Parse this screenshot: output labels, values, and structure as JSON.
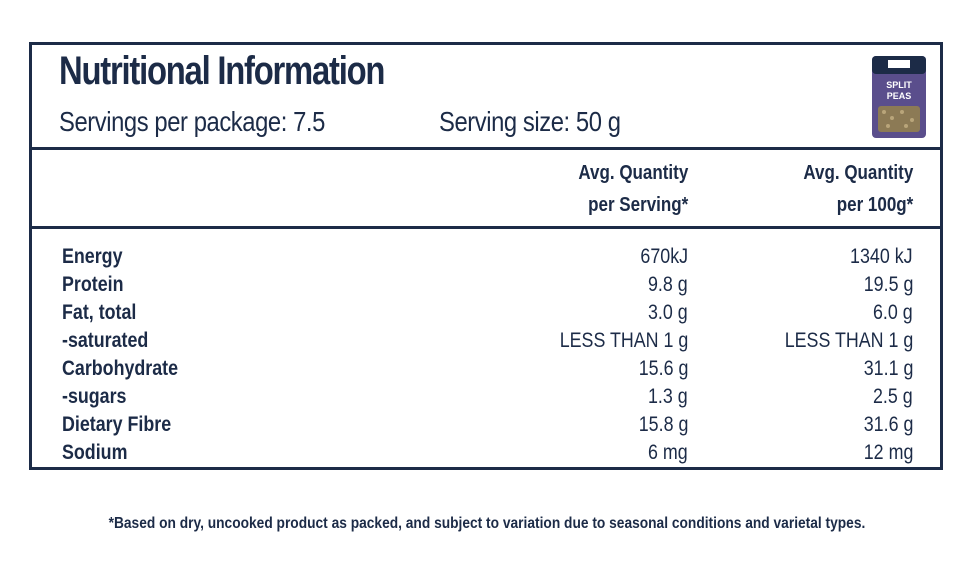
{
  "panel": {
    "title": "Nutritional Information",
    "servings_per_package": "Servings per package: 7.5",
    "serving_size": "Serving size: 50 g"
  },
  "columns": {
    "per_serving": [
      "Avg. Quantity",
      "per Serving*"
    ],
    "per_100g": [
      "Avg. Quantity",
      "per 100g*"
    ]
  },
  "rows": [
    {
      "label": "Energy",
      "per_serving": "670kJ",
      "per_100g": "1340 kJ"
    },
    {
      "label": "Protein",
      "per_serving": "9.8 g",
      "per_100g": "19.5 g"
    },
    {
      "label": "Fat, total",
      "per_serving": "3.0 g",
      "per_100g": "6.0 g"
    },
    {
      "label": "-saturated",
      "per_serving": "LESS THAN 1 g",
      "per_100g": "LESS THAN 1 g"
    },
    {
      "label": "Carbohydrate",
      "per_serving": "15.6 g",
      "per_100g": "31.1 g"
    },
    {
      "label": "-sugars",
      "per_serving": "1.3 g",
      "per_100g": "2.5 g"
    },
    {
      "label": "Dietary Fibre",
      "per_serving": "15.8 g",
      "per_100g": "31.6 g"
    },
    {
      "label": "Sodium",
      "per_serving": "6 mg",
      "per_100g": "12 mg"
    }
  ],
  "footnote": "*Based on dry, uncooked product as packed, and subject to variation due to seasonal conditions and varietal types.",
  "product_image": {
    "brand_text": "",
    "package_text": [
      "SPLIT",
      "PEAS"
    ],
    "colors": {
      "top": "#1c2b47",
      "body": "#5a4e8c",
      "window": "#8c7a55"
    }
  },
  "colors": {
    "ink": "#1c2b47",
    "background": "#ffffff"
  }
}
